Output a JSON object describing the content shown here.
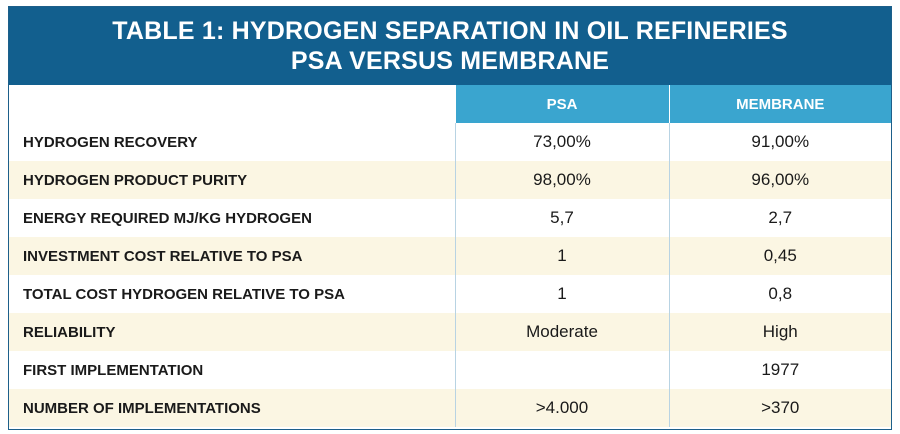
{
  "title": {
    "line1": "TABLE 1:  HYDROGEN SEPARATION IN OIL REFINERIES",
    "line2": "PSA VERSUS MEMBRANE"
  },
  "colors": {
    "title_bg": "#125f8e",
    "header_bg": "#3aa5cf",
    "stripe_bg": "#fbf6e3"
  },
  "table": {
    "headers": [
      "",
      "PSA",
      "MEMBRANE"
    ],
    "rows": [
      {
        "label": "HYDROGEN RECOVERY",
        "psa": "73,00%",
        "membrane": "91,00%"
      },
      {
        "label": "HYDROGEN PRODUCT PURITY",
        "psa": "98,00%",
        "membrane": "96,00%"
      },
      {
        "label": "ENERGY REQUIRED MJ/KG HYDROGEN",
        "psa": "5,7",
        "membrane": "2,7"
      },
      {
        "label": "INVESTMENT COST RELATIVE TO PSA",
        "psa": "1",
        "membrane": "0,45"
      },
      {
        "label": "TOTAL COST HYDROGEN RELATIVE TO PSA",
        "psa": "1",
        "membrane": "0,8"
      },
      {
        "label": "RELIABILITY",
        "psa": "Moderate",
        "membrane": "High"
      },
      {
        "label": "FIRST IMPLEMENTATION",
        "psa": "",
        "membrane": "1977"
      },
      {
        "label": "NUMBER OF IMPLEMENTATIONS",
        "psa": ">4.000",
        "membrane": ">370"
      }
    ]
  }
}
